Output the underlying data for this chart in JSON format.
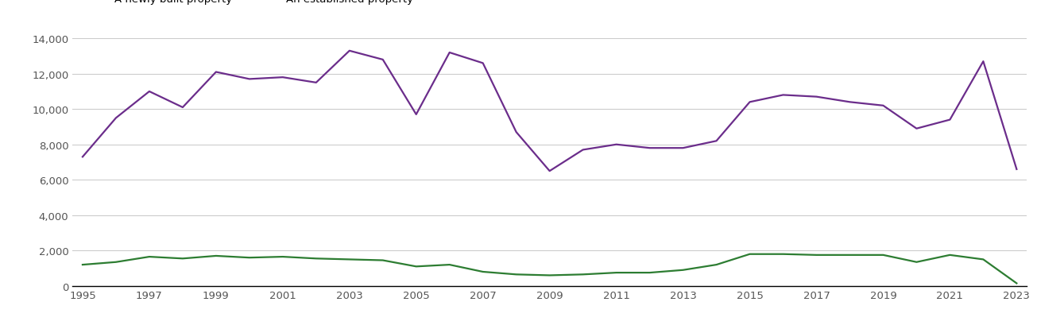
{
  "years": [
    1995,
    1996,
    1997,
    1998,
    1999,
    2000,
    2001,
    2002,
    2003,
    2004,
    2005,
    2006,
    2007,
    2008,
    2009,
    2010,
    2011,
    2012,
    2013,
    2014,
    2015,
    2016,
    2017,
    2018,
    2019,
    2020,
    2021,
    2022,
    2023
  ],
  "new_homes": [
    1200,
    1350,
    1650,
    1550,
    1700,
    1600,
    1650,
    1550,
    1500,
    1450,
    1100,
    1200,
    800,
    650,
    600,
    650,
    750,
    750,
    900,
    1200,
    1800,
    1800,
    1750,
    1750,
    1750,
    1350,
    1750,
    1500,
    150
  ],
  "established_homes": [
    7300,
    9500,
    11000,
    10100,
    12100,
    11700,
    11800,
    11500,
    13300,
    12800,
    9700,
    13200,
    12600,
    8700,
    6500,
    7700,
    8000,
    7800,
    7800,
    8200,
    10400,
    10800,
    10700,
    10400,
    10200,
    8900,
    9400,
    12700,
    6600
  ],
  "new_color": "#2d7d32",
  "established_color": "#6b2d8b",
  "ylim": [
    0,
    14000
  ],
  "yticks": [
    0,
    2000,
    4000,
    6000,
    8000,
    10000,
    12000,
    14000
  ],
  "xtick_years": [
    1995,
    1997,
    1999,
    2001,
    2003,
    2005,
    2007,
    2009,
    2011,
    2013,
    2015,
    2017,
    2019,
    2021,
    2023
  ],
  "background_color": "#ffffff",
  "grid_color": "#cccccc",
  "tick_label_color": "#555555",
  "line_width": 1.6
}
